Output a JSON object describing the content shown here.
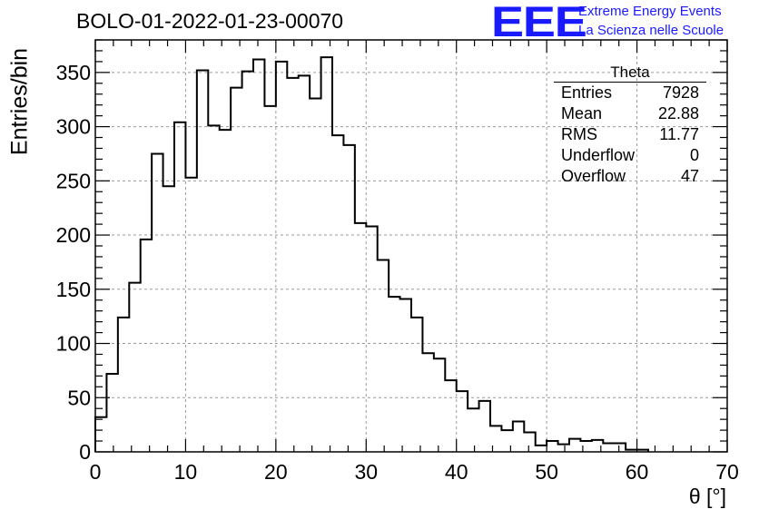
{
  "title": "BOLO-01-2022-01-23-00070",
  "logo": {
    "mark": "EEE",
    "line1": "Extreme Energy Events",
    "line2": "La Scienza nelle Scuole",
    "color": "#1a1aff"
  },
  "stats": {
    "title": "Theta",
    "rows": [
      {
        "label": "Entries",
        "value": "7928"
      },
      {
        "label": "Mean",
        "value": "22.88"
      },
      {
        "label": "RMS",
        "value": "11.77"
      },
      {
        "label": "Underflow",
        "value": "0"
      },
      {
        "label": "Overflow",
        "value": "47"
      }
    ]
  },
  "chart_data": {
    "type": "bar",
    "style": "step-histogram",
    "xlabel": "θ [°]",
    "ylabel": "Entries/bin",
    "xlim": [
      0,
      70
    ],
    "ylim": [
      0,
      380
    ],
    "xticks": [
      0,
      10,
      20,
      30,
      40,
      50,
      60,
      70
    ],
    "yticks": [
      0,
      50,
      100,
      150,
      200,
      250,
      300,
      350
    ],
    "grid": true,
    "bin_width": 1.25,
    "values": [
      32,
      72,
      124,
      156,
      196,
      275,
      245,
      304,
      253,
      352,
      301,
      297,
      336,
      351,
      362,
      319,
      360,
      345,
      347,
      326,
      364,
      292,
      283,
      211,
      208,
      177,
      143,
      141,
      124,
      91,
      86,
      66,
      56,
      40,
      47,
      24,
      20,
      28,
      18,
      6,
      10,
      7,
      12,
      10,
      11,
      8,
      8,
      2,
      2
    ]
  }
}
